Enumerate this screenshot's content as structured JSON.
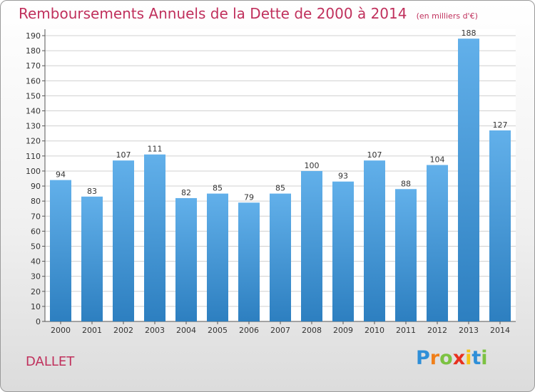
{
  "title": "Remboursements Annuels de la Dette de 2000 à 2014",
  "unit_note": "(en milliers d'€)",
  "commune": "DALLET",
  "logo": {
    "text": "Proxiti",
    "letters": [
      "P",
      "r",
      "o",
      "x",
      "i",
      "t",
      "i"
    ],
    "colors": [
      "#2f8fd8",
      "#f07f1a",
      "#7cc242",
      "#e8311f",
      "#f4c316",
      "#2f8fd8",
      "#7cc242"
    ]
  },
  "colors": {
    "title": "#c0305c",
    "bar_top": "#62b0ea",
    "bar_bottom": "#2d7fc0",
    "grid": "#d0d0d0"
  },
  "chart_data": {
    "type": "bar",
    "categories": [
      "2000",
      "2001",
      "2002",
      "2003",
      "2004",
      "2005",
      "2006",
      "2007",
      "2008",
      "2009",
      "2010",
      "2011",
      "2012",
      "2013",
      "2014"
    ],
    "values": [
      94,
      83,
      107,
      111,
      82,
      85,
      79,
      85,
      100,
      93,
      107,
      88,
      104,
      188,
      127
    ],
    "title": "Remboursements Annuels de la Dette de 2000 à 2014",
    "xlabel": "",
    "ylabel": "",
    "ylim": [
      0,
      190
    ],
    "ytick_step": 10,
    "grid": true,
    "data_labels": true,
    "legend": "none"
  }
}
